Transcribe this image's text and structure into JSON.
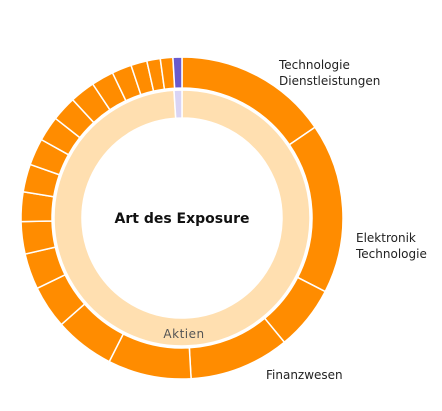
{
  "chart_data": {
    "type": "sunburst",
    "title": "Art des Exposure",
    "colors": {
      "outer": "#ff8c00",
      "inner": "#ffdfb0",
      "accent_outer": "#6a5acd",
      "accent_inner": "#d9d4f5",
      "border": "#ffffff"
    },
    "inner_ring": [
      {
        "label": "Aktien",
        "value": 99.0,
        "color": "#ffdfb0"
      },
      {
        "label": "",
        "value": 1.0,
        "color": "#d9d4f5"
      }
    ],
    "outer_ring": [
      {
        "label": "Technologie Dienstleistungen",
        "value": 17.2,
        "color": "#ff8c00"
      },
      {
        "label": "Elektronik Technologie",
        "value": 19.0,
        "color": "#ff8c00"
      },
      {
        "label": "",
        "value": 7.2,
        "color": "#ff8c00"
      },
      {
        "label": "Finanzwesen",
        "value": 11.2,
        "color": "#ff8c00"
      },
      {
        "label": "",
        "value": 9.3,
        "color": "#ff8c00"
      },
      {
        "label": "",
        "value": 6.7,
        "color": "#ff8c00"
      },
      {
        "label": "",
        "value": 4.8,
        "color": "#ff8c00"
      },
      {
        "label": "",
        "value": 4.0,
        "color": "#ff8c00"
      },
      {
        "label": "",
        "value": 3.6,
        "color": "#ff8c00"
      },
      {
        "label": "",
        "value": 3.3,
        "color": "#ff8c00"
      },
      {
        "label": "",
        "value": 3.1,
        "color": "#ff8c00"
      },
      {
        "label": "",
        "value": 3.0,
        "color": "#ff8c00"
      },
      {
        "label": "",
        "value": 2.8,
        "color": "#ff8c00"
      },
      {
        "label": "",
        "value": 2.8,
        "color": "#ff8c00"
      },
      {
        "label": "",
        "value": 2.8,
        "color": "#ff8c00"
      },
      {
        "label": "",
        "value": 2.5,
        "color": "#ff8c00"
      },
      {
        "label": "",
        "value": 2.2,
        "color": "#ff8c00"
      },
      {
        "label": "",
        "value": 1.8,
        "color": "#ff8c00"
      },
      {
        "label": "",
        "value": 1.5,
        "color": "#ff8c00"
      },
      {
        "label": "",
        "value": 1.4,
        "color": "#ff8c00"
      },
      {
        "label": "",
        "value": 1.0,
        "color": "#6a5acd"
      }
    ]
  }
}
